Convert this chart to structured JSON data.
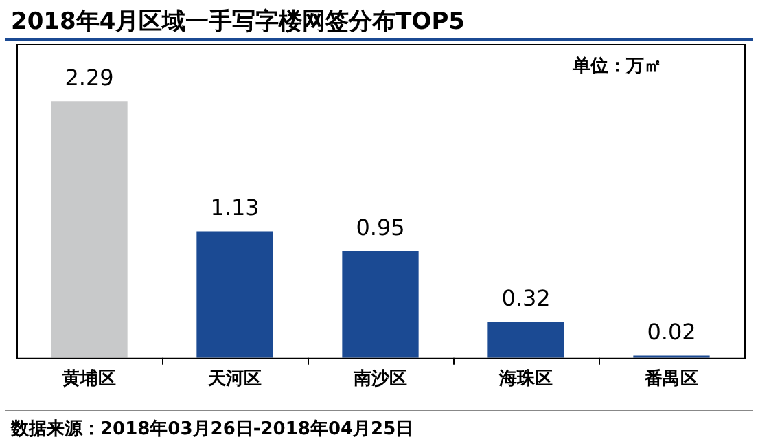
{
  "chart_data": {
    "type": "bar",
    "title": "2018年4月区域一手写字楼网签分布TOP5",
    "categories": [
      "黄埔区",
      "天河区",
      "南沙区",
      "海珠区",
      "番禺区"
    ],
    "values": [
      2.29,
      1.13,
      0.95,
      0.32,
      0.02
    ],
    "colors": [
      "#c8c9ca",
      "#1b4a93",
      "#1b4a93",
      "#1b4a93",
      "#1b4a93"
    ],
    "ylim": [
      0,
      2.8
    ],
    "data_labels": true,
    "grid": false,
    "legend": false,
    "annotations": [
      "单位：万㎡",
      "数据来源：2018年03月26日-2018年04月25日"
    ]
  }
}
